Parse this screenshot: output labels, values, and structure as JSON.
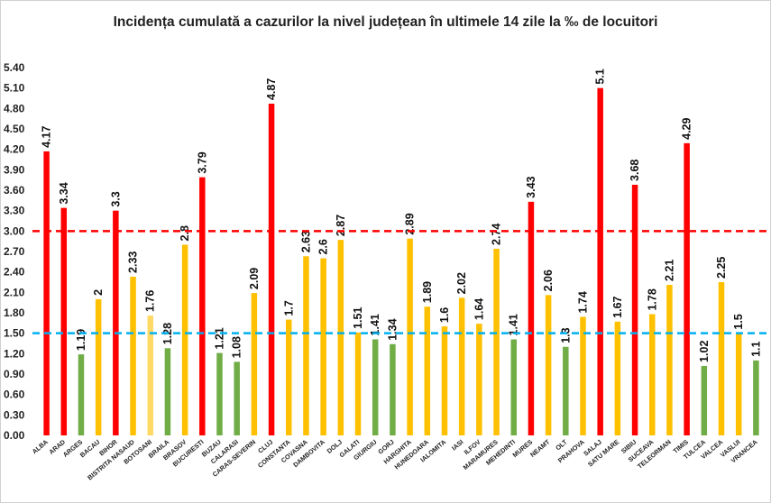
{
  "chart_data": {
    "type": "bar",
    "title": "Incidența cumulată a cazurilor la nivel județean în ultimele 14 zile la ‰ de locuitori",
    "xlabel": "",
    "ylabel": "",
    "ylim": [
      0,
      5.4
    ],
    "yticks": [
      "0.00",
      "0.30",
      "0.60",
      "0.90",
      "1.20",
      "1.50",
      "1.80",
      "2.10",
      "2.40",
      "2.70",
      "3.00",
      "3.30",
      "3.60",
      "3.90",
      "4.20",
      "4.50",
      "4.80",
      "5.10",
      "5.40"
    ],
    "categories": [
      "ALBA",
      "ARAD",
      "ARGES",
      "BACAU",
      "BIHOR",
      "BISTRITA NASAUD",
      "BOTOSANI",
      "BRAILA",
      "BRASOV",
      "BUCURESTI",
      "BUZAU",
      "CALARASI",
      "CARAS-SEVERIN",
      "CLUJ",
      "CONSTANTA",
      "COVASNA",
      "DAMBOVITA",
      "DOLJ",
      "GALATI",
      "GIURGIU",
      "GORJ",
      "HARGHITA",
      "HUNEDOARA",
      "IALOMITA",
      "IASI",
      "ILFOV",
      "MARAMURES",
      "MEHEDINTI",
      "MURES",
      "NEAMT",
      "OLT",
      "PRAHOVA",
      "SALAJ",
      "SATU MARE",
      "SIBIU",
      "SUCEAVA",
      "TELEORMAN",
      "TIMIS",
      "TULCEA",
      "VALCEA",
      "VASLUI",
      "VRANCEA"
    ],
    "values": [
      4.17,
      3.34,
      1.19,
      2,
      3.3,
      2.33,
      1.76,
      1.28,
      2.8,
      3.79,
      1.21,
      1.08,
      2.09,
      4.87,
      1.7,
      2.63,
      2.6,
      2.87,
      1.51,
      1.41,
      1.34,
      2.89,
      1.89,
      1.6,
      2.02,
      1.64,
      2.74,
      1.41,
      3.43,
      2.06,
      1.3,
      1.74,
      5.1,
      1.67,
      3.68,
      1.78,
      2.21,
      4.29,
      1.02,
      2.25,
      1.5,
      1.1
    ],
    "labels": [
      "4.17",
      "3.34",
      "1.19",
      "2",
      "3.3",
      "2.33",
      "1.76",
      "1.28",
      "2.8",
      "3.79",
      "1.21",
      "1.08",
      "2.09",
      "4.87",
      "1.7",
      "2.63",
      "2.6",
      "2.87",
      "1.51",
      "1.41",
      "1.34",
      "2.89",
      "1.89",
      "1.6",
      "2.02",
      "1.64",
      "2.74",
      "1.41",
      "3.43",
      "2.06",
      "1.3",
      "1.74",
      "5.1",
      "1.67",
      "3.68",
      "1.78",
      "2.21",
      "4.29",
      "1.02",
      "2.25",
      "1.5",
      "1.1"
    ],
    "bar_colors": [
      "#ff0000",
      "#ff0000",
      "#70ad47",
      "#ffc000",
      "#ff0000",
      "#ffc000",
      "#ffd966",
      "#70ad47",
      "#ffc000",
      "#ff0000",
      "#70ad47",
      "#70ad47",
      "#ffc000",
      "#ff0000",
      "#ffc000",
      "#ffc000",
      "#ffc000",
      "#ffc000",
      "#ffc000",
      "#70ad47",
      "#70ad47",
      "#ffc000",
      "#ffc000",
      "#ffc000",
      "#ffc000",
      "#ffc000",
      "#ffc000",
      "#70ad47",
      "#ff0000",
      "#ffc000",
      "#70ad47",
      "#ffc000",
      "#ff0000",
      "#ffc000",
      "#ff0000",
      "#ffc000",
      "#ffc000",
      "#ff0000",
      "#70ad47",
      "#ffc000",
      "#ffc000",
      "#70ad47"
    ],
    "reference_lines": [
      {
        "value": 3.0,
        "color": "#ff0000",
        "style": "dashed"
      },
      {
        "value": 1.5,
        "color": "#00b0f0",
        "style": "dashed"
      }
    ],
    "grid": false,
    "legend": "none"
  }
}
